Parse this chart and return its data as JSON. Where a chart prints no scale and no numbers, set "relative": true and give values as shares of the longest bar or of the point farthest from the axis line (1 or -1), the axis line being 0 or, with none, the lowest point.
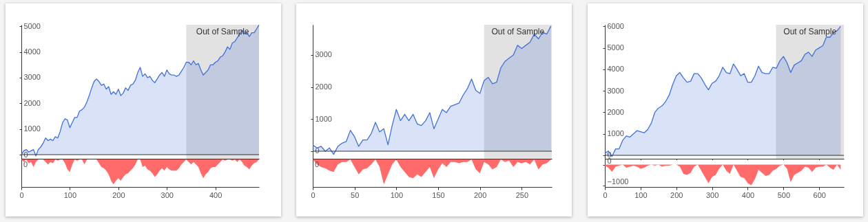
{
  "chart_data": [
    {
      "type": "area",
      "color": "#4070d8",
      "x": [
        0,
        5,
        10,
        15,
        20,
        25,
        30,
        35,
        40,
        45,
        50,
        55,
        60,
        65,
        70,
        75,
        80,
        85,
        90,
        95,
        100,
        105,
        110,
        115,
        120,
        125,
        130,
        135,
        140,
        145,
        150,
        155,
        160,
        165,
        170,
        175,
        180,
        185,
        190,
        195,
        200,
        205,
        210,
        215,
        220,
        225,
        230,
        235,
        240,
        245,
        250,
        255,
        260,
        265,
        270,
        275,
        280,
        285,
        290,
        295,
        300,
        305,
        310,
        315,
        320,
        325,
        330,
        335,
        340,
        345,
        350,
        355,
        360,
        365,
        370,
        375,
        380,
        385,
        390,
        395,
        400,
        405,
        410,
        415,
        420,
        425,
        430,
        435,
        440,
        445,
        450,
        455,
        460,
        465,
        470,
        475,
        480,
        485,
        490
      ],
      "values": [
        0,
        150,
        200,
        100,
        150,
        200,
        -50,
        200,
        300,
        450,
        650,
        550,
        600,
        550,
        700,
        650,
        900,
        1250,
        1400,
        1350,
        1050,
        1250,
        1450,
        1450,
        1700,
        1750,
        1850,
        2050,
        2300,
        2600,
        2850,
        2950,
        2850,
        2700,
        2750,
        2550,
        2650,
        2350,
        2450,
        2350,
        2550,
        2300,
        2400,
        2600,
        2500,
        2700,
        2750,
        2900,
        3200,
        3400,
        3050,
        3150,
        3000,
        3050,
        2900,
        2800,
        2950,
        3100,
        3200,
        3050,
        3300,
        3150,
        3100,
        3100,
        3050,
        3100,
        3250,
        3400,
        3600,
        3600,
        3500,
        3650,
        3500,
        3550,
        3300,
        3100,
        3200,
        3300,
        3500,
        3500,
        3600,
        3650,
        3800,
        3850,
        4000,
        4200,
        4100,
        4350,
        4400,
        4550,
        4700,
        4850,
        4700,
        4750,
        4600,
        4750,
        4750,
        4900,
        5050
      ],
      "xlim": [
        0,
        490
      ],
      "xticks": [
        0,
        100,
        200,
        300,
        400
      ],
      "ylim": [
        -160,
        5060
      ],
      "yticks": [
        0,
        1000,
        2000,
        3000,
        4000,
        5000
      ],
      "tick_labels": "y",
      "ref_lines": [
        {
          "axis": "y",
          "value": 0,
          "color": "#333333"
        }
      ],
      "bands": [
        {
          "axis": "x",
          "from": 340,
          "to": 490,
          "label": "Out of Sample",
          "color": "#e2e2e2"
        }
      ]
    },
    {
      "type": "area",
      "color": "#ff6b6b",
      "relative": true,
      "x": [
        0,
        5,
        10,
        15,
        20,
        25,
        30,
        35,
        40,
        45,
        50,
        55,
        60,
        65,
        70,
        75,
        80,
        85,
        90,
        95,
        100,
        105,
        110,
        115,
        120,
        125,
        130,
        135,
        140,
        145,
        150,
        155,
        160,
        165,
        170,
        175,
        180,
        185,
        190,
        195,
        200,
        205,
        210,
        215,
        220,
        225,
        230,
        235,
        240,
        245,
        250,
        255,
        260,
        265,
        270,
        275,
        280,
        285,
        290,
        295,
        300,
        305,
        310,
        315,
        320,
        325,
        330,
        335,
        340,
        345,
        350,
        355,
        360,
        365,
        370,
        375,
        380,
        385,
        390,
        395,
        400,
        405,
        410,
        415,
        420,
        425,
        430,
        435,
        440,
        445,
        450,
        455,
        460,
        465,
        470,
        475,
        480,
        485,
        490
      ],
      "values": [
        0,
        -0.1,
        0,
        -0.15,
        -0.1,
        -0.3,
        -0.1,
        0,
        0,
        0,
        -0.1,
        -0.2,
        -0.1,
        -0.15,
        0,
        -0.05,
        0,
        0,
        -0.15,
        -0.4,
        -0.5,
        -0.2,
        0,
        -0.05,
        0,
        0,
        -0.2,
        0,
        0,
        0,
        0,
        0,
        -0.15,
        -0.3,
        -0.35,
        -0.45,
        -0.6,
        -0.85,
        -1,
        -0.85,
        -0.75,
        -0.85,
        -0.7,
        -0.6,
        -0.55,
        -0.45,
        -0.35,
        -0.2,
        0,
        0,
        -0.3,
        -0.25,
        -0.4,
        -0.45,
        -0.55,
        -0.7,
        -0.6,
        -0.45,
        -0.35,
        -0.45,
        -0.3,
        -0.4,
        -0.45,
        -0.45,
        -0.45,
        -0.35,
        -0.2,
        -0.1,
        0,
        -0.1,
        -0.2,
        -0.1,
        -0.2,
        -0.3,
        -0.55,
        -0.75,
        -0.6,
        -0.5,
        -0.35,
        -0.3,
        -0.3,
        -0.2,
        -0.1,
        0,
        -0.05,
        0,
        0,
        -0.05,
        0,
        -0.1,
        0,
        -0.1,
        -0.25,
        -0.3,
        -0.4,
        -0.25,
        -0.15,
        -0.1,
        0
      ],
      "xlim": [
        0,
        490
      ],
      "xticks": [
        0,
        100,
        200,
        300,
        400
      ],
      "annotations": [
        {
          "text": "0",
          "x": 0,
          "y": 0
        }
      ]
    },
    {
      "type": "area",
      "color": "#4070d8",
      "x": [
        0,
        5,
        10,
        15,
        20,
        25,
        30,
        35,
        40,
        45,
        50,
        55,
        60,
        65,
        70,
        75,
        80,
        85,
        90,
        95,
        100,
        105,
        110,
        115,
        120,
        125,
        130,
        135,
        140,
        145,
        150,
        155,
        160,
        165,
        170,
        175,
        180,
        185,
        190,
        195,
        200,
        205,
        210,
        215,
        220,
        225,
        230,
        235,
        240,
        245,
        250,
        255,
        260,
        265,
        270,
        275,
        280,
        285
      ],
      "values": [
        200,
        100,
        150,
        0,
        100,
        -100,
        150,
        250,
        300,
        650,
        450,
        150,
        350,
        350,
        550,
        900,
        600,
        700,
        200,
        800,
        1300,
        950,
        1150,
        950,
        1150,
        850,
        800,
        950,
        1200,
        700,
        1000,
        1300,
        1200,
        1400,
        1450,
        1500,
        1750,
        1950,
        2250,
        1900,
        1800,
        2200,
        2300,
        2100,
        2150,
        2600,
        2800,
        2900,
        3000,
        3300,
        3200,
        3300,
        3400,
        3650,
        3500,
        3700,
        3650,
        3900
      ],
      "xlim": [
        0,
        286
      ],
      "xticks": [
        0,
        50,
        100,
        150,
        200,
        250
      ],
      "ylim": [
        -236,
        3940
      ],
      "yticks": [
        0,
        1000,
        2000,
        3000
      ],
      "tick_labels": "y",
      "ref_lines": [
        {
          "axis": "y",
          "value": 0,
          "color": "#333333"
        }
      ],
      "bands": [
        {
          "axis": "x",
          "from": 205,
          "to": 286,
          "label": "Out of Sample",
          "color": "#e2e2e2"
        }
      ]
    },
    {
      "type": "area",
      "color": "#ff6b6b",
      "relative": true,
      "x": [
        0,
        5,
        10,
        15,
        20,
        25,
        30,
        35,
        40,
        45,
        50,
        55,
        60,
        65,
        70,
        75,
        80,
        85,
        90,
        95,
        100,
        105,
        110,
        115,
        120,
        125,
        130,
        135,
        140,
        145,
        150,
        155,
        160,
        165,
        170,
        175,
        180,
        185,
        190,
        195,
        200,
        205,
        210,
        215,
        220,
        225,
        230,
        235,
        240,
        245,
        250,
        255,
        260,
        265,
        270,
        275,
        280,
        285
      ],
      "values": [
        0,
        -0.2,
        -0.3,
        -0.35,
        -0.45,
        -0.5,
        -0.2,
        -0.1,
        -0.1,
        0,
        -0.3,
        -0.6,
        -0.4,
        -0.35,
        -0.2,
        0,
        -0.3,
        -1,
        -0.6,
        -0.2,
        0,
        -0.3,
        -0.5,
        -0.7,
        -0.75,
        -0.6,
        -0.7,
        -0.5,
        -0.3,
        -0.75,
        -0.4,
        -0.15,
        -0.3,
        -0.1,
        -0.1,
        -0.15,
        -0.1,
        -0.1,
        0,
        -0.4,
        -0.55,
        -0.1,
        -0.2,
        -0.4,
        -0.3,
        0,
        -0.1,
        -0.05,
        -0.3,
        -0.1,
        -0.15,
        -0.1,
        -0.2,
        0,
        -0.4,
        -0.2,
        -0.15,
        0
      ],
      "xlim": [
        0,
        286
      ],
      "xticks": [
        0,
        50,
        100,
        150,
        200,
        250
      ],
      "annotations": [
        {
          "text": "0",
          "x": 0,
          "y": 0
        }
      ]
    },
    {
      "type": "area",
      "color": "#4070d8",
      "x": [
        0,
        10,
        20,
        30,
        40,
        50,
        60,
        70,
        80,
        90,
        100,
        110,
        120,
        130,
        140,
        150,
        160,
        170,
        180,
        190,
        200,
        210,
        220,
        230,
        240,
        250,
        260,
        270,
        280,
        290,
        300,
        310,
        320,
        330,
        340,
        350,
        360,
        370,
        380,
        390,
        400,
        410,
        420,
        430,
        440,
        450,
        460,
        470,
        480,
        490,
        500,
        510,
        520,
        530,
        540,
        550,
        560,
        570,
        580,
        590,
        600,
        610,
        620,
        630,
        640,
        650,
        660
      ],
      "values": [
        100,
        200,
        -50,
        300,
        300,
        700,
        900,
        850,
        1000,
        1150,
        1100,
        1050,
        1200,
        1500,
        2000,
        2200,
        2300,
        2500,
        2800,
        3300,
        3700,
        3850,
        3600,
        3400,
        3450,
        3800,
        3800,
        3600,
        3300,
        3050,
        3350,
        3450,
        3700,
        4100,
        3850,
        3800,
        4250,
        4000,
        3700,
        3800,
        3400,
        3400,
        3700,
        4150,
        3850,
        3800,
        3800,
        4100,
        4050,
        4400,
        4600,
        4300,
        3850,
        4200,
        4300,
        4400,
        4700,
        4800,
        4600,
        4900,
        5000,
        5100,
        5500,
        5500,
        5700,
        5800,
        6000
      ],
      "xlim": [
        0,
        669
      ],
      "xticks": [
        0,
        100,
        200,
        300,
        400,
        500,
        600
      ],
      "ylim": [
        -160,
        6075
      ],
      "yticks": [
        0,
        1000,
        2000,
        3000,
        4000,
        5000,
        6000
      ],
      "tick_labels": "y",
      "ref_lines": [
        {
          "axis": "y",
          "value": 0,
          "color": "#333333"
        }
      ],
      "bands": [
        {
          "axis": "x",
          "from": 479,
          "to": 669,
          "label": "Out of Sample",
          "color": "#e2e2e2"
        }
      ]
    },
    {
      "type": "area",
      "color": "#ff6b6b",
      "x": [
        0,
        10,
        20,
        30,
        40,
        50,
        60,
        70,
        80,
        90,
        100,
        110,
        120,
        130,
        140,
        150,
        160,
        170,
        180,
        190,
        200,
        210,
        220,
        230,
        240,
        250,
        260,
        270,
        280,
        290,
        300,
        310,
        320,
        330,
        340,
        350,
        360,
        370,
        380,
        390,
        400,
        410,
        420,
        430,
        440,
        450,
        460,
        470,
        480,
        490,
        500,
        510,
        520,
        530,
        540,
        550,
        560,
        570,
        580,
        590,
        600,
        610,
        620,
        630,
        640,
        650,
        660
      ],
      "values": [
        -50,
        -150,
        -350,
        -100,
        -50,
        0,
        -150,
        -100,
        -50,
        -100,
        -200,
        -150,
        -50,
        0,
        -50,
        0,
        -100,
        -50,
        -50,
        0,
        0,
        -100,
        -450,
        -500,
        -400,
        -100,
        0,
        -300,
        -600,
        -900,
        -600,
        -500,
        -200,
        0,
        -300,
        -450,
        0,
        -300,
        -600,
        -650,
        -900,
        -1000,
        -700,
        -250,
        -400,
        -550,
        -500,
        -300,
        -200,
        -50,
        0,
        -200,
        -850,
        -500,
        -400,
        -300,
        -100,
        -150,
        -350,
        -150,
        -100,
        -100,
        0,
        -150,
        -250,
        0,
        -250
      ],
      "xlim": [
        0,
        669
      ],
      "xticks": [
        0,
        100,
        200,
        300,
        400,
        500,
        600
      ],
      "ylim": [
        -1080,
        250
      ],
      "yticks": [
        0,
        -1000
      ]
    }
  ]
}
